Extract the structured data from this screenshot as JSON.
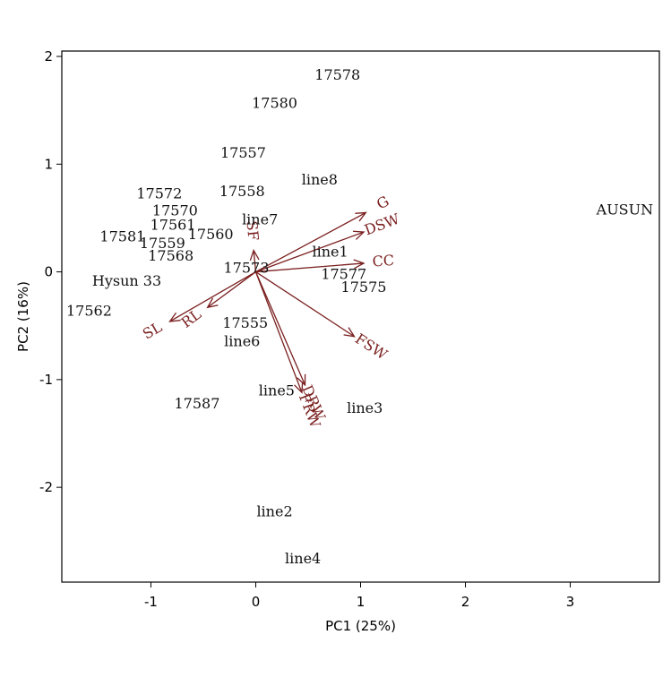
{
  "chart_data": {
    "type": "scatter",
    "subtype": "pca-biplot",
    "xlabel": "PC1 (25%)",
    "ylabel": "PC2 (16%)",
    "xlim": [
      -1.85,
      3.85
    ],
    "ylim": [
      -2.88,
      2.05
    ],
    "xticks": [
      -1,
      0,
      1,
      2,
      3
    ],
    "yticks": [
      -2,
      -1,
      0,
      1,
      2
    ],
    "grid": false,
    "points": [
      {
        "label": "17578",
        "x": 0.78,
        "y": 1.82
      },
      {
        "label": "17580",
        "x": 0.18,
        "y": 1.56
      },
      {
        "label": "17557",
        "x": -0.12,
        "y": 1.1
      },
      {
        "label": "17572",
        "x": -0.92,
        "y": 0.72
      },
      {
        "label": "17558",
        "x": -0.13,
        "y": 0.74
      },
      {
        "label": "line8",
        "x": 0.61,
        "y": 0.85
      },
      {
        "label": "17570",
        "x": -0.77,
        "y": 0.56
      },
      {
        "label": "line7",
        "x": 0.04,
        "y": 0.48
      },
      {
        "label": "17561",
        "x": -0.79,
        "y": 0.43
      },
      {
        "label": "17560",
        "x": -0.43,
        "y": 0.34
      },
      {
        "label": "17581",
        "x": -1.27,
        "y": 0.32
      },
      {
        "label": "17559",
        "x": -0.89,
        "y": 0.26
      },
      {
        "label": "17568",
        "x": -0.81,
        "y": 0.14
      },
      {
        "label": "line1",
        "x": 0.71,
        "y": 0.18
      },
      {
        "label": "17573",
        "x": -0.09,
        "y": 0.03
      },
      {
        "label": "17577",
        "x": 0.84,
        "y": -0.03
      },
      {
        "label": "17575",
        "x": 1.03,
        "y": -0.15
      },
      {
        "label": "Hysun 33",
        "x": -1.23,
        "y": -0.09
      },
      {
        "label": "17562",
        "x": -1.59,
        "y": -0.37
      },
      {
        "label": "17555",
        "x": -0.1,
        "y": -0.48
      },
      {
        "label": "line6",
        "x": -0.13,
        "y": -0.65
      },
      {
        "label": "line5",
        "x": 0.2,
        "y": -1.11
      },
      {
        "label": "17587",
        "x": -0.56,
        "y": -1.23
      },
      {
        "label": "line3",
        "x": 1.04,
        "y": -1.27
      },
      {
        "label": "line2",
        "x": 0.18,
        "y": -2.23
      },
      {
        "label": "line4",
        "x": 0.45,
        "y": -2.67
      },
      {
        "label": "AUSUN",
        "x": 3.52,
        "y": 0.57
      }
    ],
    "vectors": [
      {
        "label": "G",
        "x": 1.05,
        "y": 0.55
      },
      {
        "label": "DSW",
        "x": 1.03,
        "y": 0.37
      },
      {
        "label": "CC",
        "x": 1.03,
        "y": 0.08
      },
      {
        "label": "FSW",
        "x": 0.94,
        "y": -0.6
      },
      {
        "label": "DRW",
        "x": 0.47,
        "y": -1.05
      },
      {
        "label": "FRW",
        "x": 0.44,
        "y": -1.12
      },
      {
        "label": "SF",
        "x": -0.02,
        "y": 0.2
      },
      {
        "label": "RL",
        "x": -0.46,
        "y": -0.33
      },
      {
        "label": "SL",
        "x": -0.82,
        "y": -0.46
      }
    ],
    "colors": {
      "points": "#111111",
      "vectors": "#7a1f1f"
    }
  }
}
